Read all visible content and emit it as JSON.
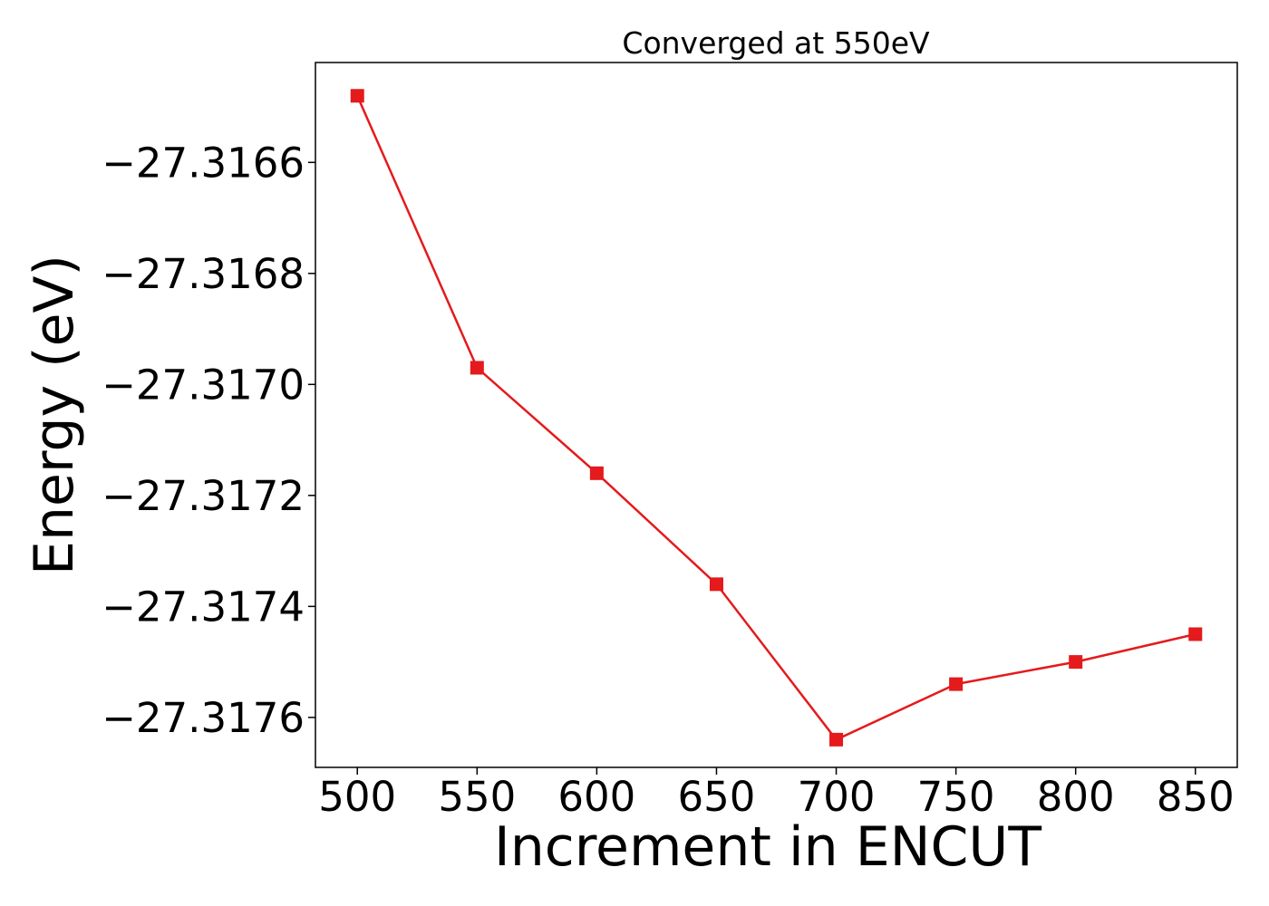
{
  "chart_data": {
    "type": "line",
    "title": "Converged at 550eV",
    "xlabel": "Increment in ENCUT",
    "ylabel": "Energy (eV)",
    "x": [
      500,
      550,
      600,
      650,
      700,
      750,
      800,
      850
    ],
    "series": [
      {
        "values": [
          -27.31648,
          -27.31697,
          -27.31716,
          -27.31736,
          -27.31764,
          -27.31754,
          -27.3175,
          -27.31745
        ]
      }
    ],
    "xticks": [
      500,
      550,
      600,
      650,
      700,
      750,
      800,
      850
    ],
    "xtick_labels": [
      "500",
      "550",
      "600",
      "650",
      "700",
      "750",
      "800",
      "850"
    ],
    "yticks": [
      -27.3166,
      -27.3168,
      -27.317,
      -27.3172,
      -27.3174,
      -27.3176
    ],
    "ytick_labels": [
      "−27.3166",
      "−27.3168",
      "−27.3170",
      "−27.3172",
      "−27.3174",
      "−27.3176"
    ],
    "xlim": [
      482.5,
      867.5
    ],
    "ylim": [
      -27.31769,
      -27.31642
    ],
    "grid": false,
    "line_color": "#e41a1c",
    "marker": "square"
  }
}
